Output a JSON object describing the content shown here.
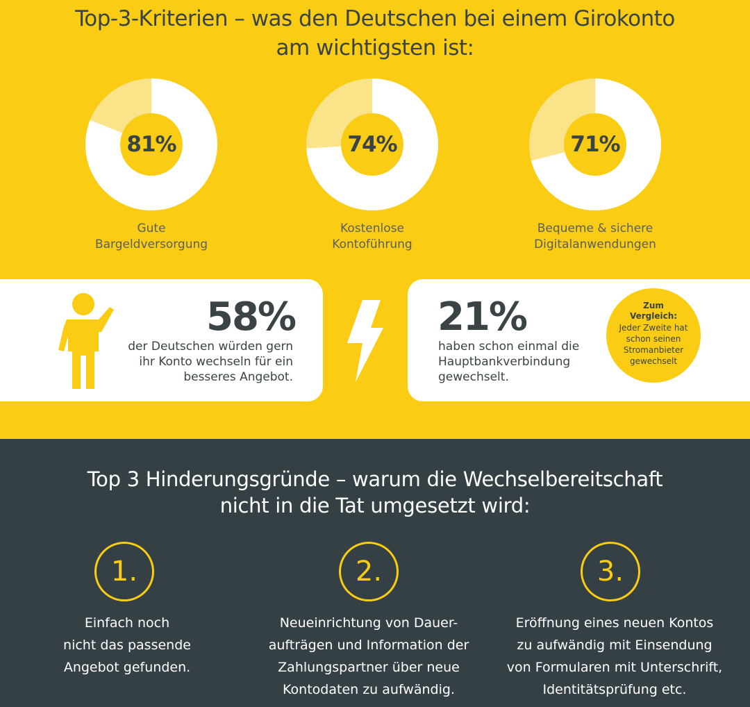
{
  "header": {
    "title_line1": "Top-3-Kriterien – was den Deutschen bei einem Girokonto",
    "title_line2": "am wichtigsten ist:"
  },
  "chart_data": [
    {
      "type": "pie",
      "value_label": "81%",
      "values": [
        81,
        19
      ],
      "categories": [
        "Gute Bargeldversorgung",
        ""
      ],
      "title": "",
      "label_line1": "Gute",
      "label_line2": "Bargeldversorgung"
    },
    {
      "type": "pie",
      "value_label": "74%",
      "values": [
        74,
        26
      ],
      "categories": [
        "Kostenlose Kontoführung",
        ""
      ],
      "title": "",
      "label_line1": "Kostenlose",
      "label_line2": "Kontoführung"
    },
    {
      "type": "pie",
      "value_label": "71%",
      "values": [
        71,
        29
      ],
      "categories": [
        "Bequeme & sichere Digitalanwendungen",
        ""
      ],
      "title": "",
      "label_line1": "Bequeme & sichere",
      "label_line2": "Digitalanwendungen"
    }
  ],
  "colors": {
    "yellow": "#FACC14",
    "light_yellow": "#FBE38A",
    "dark": "#354045",
    "text_dark": "#3a4346",
    "white": "#ffffff"
  },
  "stats": {
    "left": {
      "value": "58%",
      "line1": "der Deutschen würden gern",
      "line2": "ihr Konto wechseln für ein",
      "line3": "besseres Angebot.",
      "icon": "person-waving-icon"
    },
    "divider_icon": "lightning-icon",
    "right": {
      "value": "21%",
      "line1": "haben schon einmal die",
      "line2": "Hauptbankverbindung",
      "line3": "gewechselt."
    },
    "compare": {
      "title_line1": "Zum",
      "title_line2": "Vergleich:",
      "line1": "Jeder Zweite hat",
      "line2": "schon seinen",
      "line3": "Stromanbieter",
      "line4": "gewechselt"
    }
  },
  "obstacles": {
    "title_line1": "Top 3 Hinderungsgründe – warum die Wechselbereitschaft",
    "title_line2": "nicht in die Tat umgesetzt wird:",
    "items": [
      {
        "number": "1.",
        "line1": "Einfach noch",
        "line2": "nicht das passende",
        "line3": "Angebot gefunden.",
        "line4": ""
      },
      {
        "number": "2.",
        "line1": "Neueinrichtung von Dauer-",
        "line2": "aufträgen und Information der",
        "line3": "Zahlungspartner über neue",
        "line4": "Kontodaten zu aufwändig."
      },
      {
        "number": "3.",
        "line1": "Eröffnung eines neuen Kontos",
        "line2": "zu aufwändig mit Einsendung",
        "line3": "von Formularen mit Unterschrift,",
        "line4": "Identitätsprüfung etc."
      }
    ]
  }
}
